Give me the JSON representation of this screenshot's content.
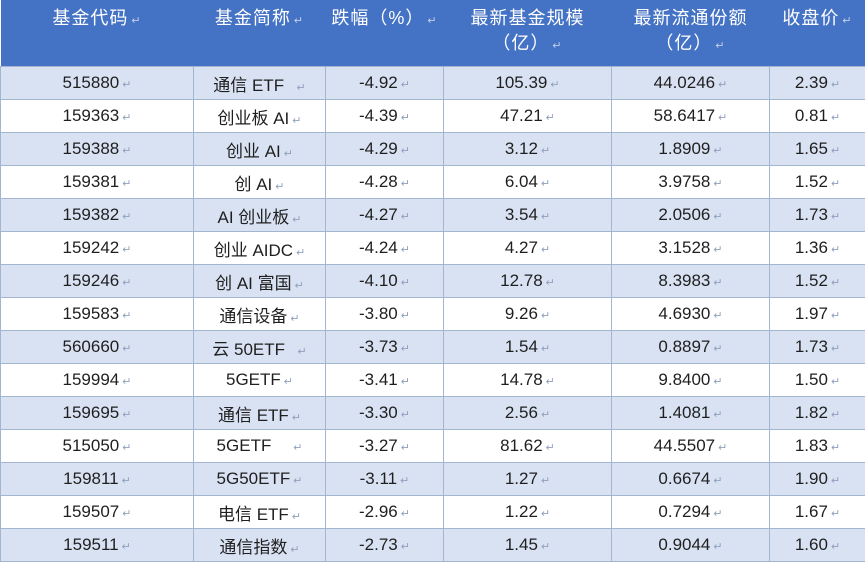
{
  "table": {
    "return_mark": "↵",
    "colors": {
      "header_bg": "#4472C4",
      "header_text": "#FFFFFF",
      "band_row_bg": "#D9E2F3",
      "white_row_bg": "#FFFFFF",
      "border": "#A3B5CF",
      "body_text": "#1F1F1F",
      "mark": "#8FA0BD",
      "header_mark": "#C3D0EA"
    },
    "header": [
      {
        "key": "fund-code",
        "lines": [
          "基金代码"
        ]
      },
      {
        "key": "fund-name",
        "lines": [
          "基金简称"
        ]
      },
      {
        "key": "decline-pct",
        "lines": [
          "跌幅（%）"
        ]
      },
      {
        "key": "fund-size",
        "lines": [
          "最新基金规模",
          "（亿）"
        ]
      },
      {
        "key": "circulating-shares",
        "lines": [
          "最新流通份额",
          "（亿）"
        ]
      },
      {
        "key": "close-price",
        "lines": [
          "收盘价"
        ]
      }
    ],
    "rows": [
      [
        "515880",
        "通信 ETF  ",
        "-4.92",
        "105.39",
        "44.0246",
        "2.39"
      ],
      [
        "159363",
        "创业板 AI",
        "-4.39",
        "47.21",
        "58.6417",
        "0.81"
      ],
      [
        "159388",
        "创业 AI",
        "-4.29",
        "3.12",
        "1.8909",
        "1.65"
      ],
      [
        "159381",
        "创 AI",
        "-4.28",
        "6.04",
        "3.9758",
        "1.52"
      ],
      [
        "159382",
        "AI 创业板",
        "-4.27",
        "3.54",
        "2.0506",
        "1.73"
      ],
      [
        "159242",
        "创业 AIDC",
        "-4.24",
        "4.27",
        "3.1528",
        "1.36"
      ],
      [
        "159246",
        "创 AI 富国",
        "-4.10",
        "12.78",
        "8.3983",
        "1.52"
      ],
      [
        "159583",
        "通信设备",
        "-3.80",
        "9.26",
        "4.6930",
        "1.97"
      ],
      [
        "560660",
        "云 50ETF  ",
        "-3.73",
        "1.54",
        "0.8897",
        "1.73"
      ],
      [
        "159994",
        "5GETF",
        "-3.41",
        "14.78",
        "9.8400",
        "1.50"
      ],
      [
        "159695",
        "通信 ETF",
        "-3.30",
        "2.56",
        "1.4081",
        "1.82"
      ],
      [
        "515050",
        "5GETF    ",
        "-3.27",
        "81.62",
        "44.5507",
        "1.83"
      ],
      [
        "159811",
        "5G50ETF",
        "-3.11",
        "1.27",
        "0.6674",
        "1.90"
      ],
      [
        "159507",
        "电信 ETF",
        "-2.96",
        "1.22",
        "0.7294",
        "1.67"
      ],
      [
        "159511",
        "通信指数",
        "-2.73",
        "1.45",
        "0.9044",
        "1.60"
      ]
    ]
  }
}
